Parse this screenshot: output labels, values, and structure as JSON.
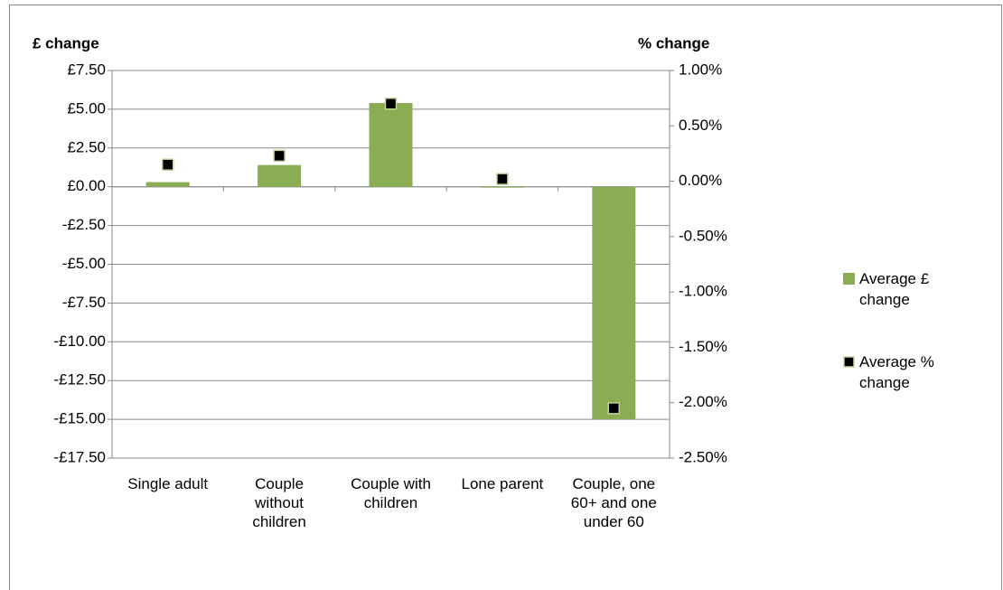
{
  "chart_data": {
    "type": "bar",
    "y_title": "£ change",
    "y2_title": "% change",
    "categories": [
      "Single adult",
      "Couple without children",
      "Couple with children",
      "Lone parent",
      "Couple, one 60+ and one under 60"
    ],
    "series": [
      {
        "name": "Average £ change",
        "type": "bar",
        "color": "#8aac52",
        "values": [
          0.3,
          1.4,
          5.4,
          -0.05,
          -15.0
        ]
      },
      {
        "name": "Average % change",
        "type": "scatter",
        "axis": "y2",
        "color": "#000000",
        "values": [
          0.15,
          0.23,
          0.7,
          0.02,
          -2.05
        ]
      }
    ],
    "ylim": [
      -17.5,
      7.5
    ],
    "yticks": [
      {
        "value": -17.5,
        "label": "-£17.50"
      },
      {
        "value": -15,
        "label": "-£15.00"
      },
      {
        "value": -12.5,
        "label": "-£12.50"
      },
      {
        "value": -10,
        "label": "-£10.00"
      },
      {
        "value": -7.5,
        "label": "-£7.50"
      },
      {
        "value": -5,
        "label": "-£5.00"
      },
      {
        "value": -2.5,
        "label": "-£2.50"
      },
      {
        "value": 0,
        "label": "£0.00"
      },
      {
        "value": 2.5,
        "label": "£2.50"
      },
      {
        "value": 5,
        "label": "£5.00"
      },
      {
        "value": 7.5,
        "label": "£7.50"
      }
    ],
    "y2lim": [
      -2.5,
      1.0
    ],
    "y2ticks": [
      {
        "value": -2.5,
        "label": "-2.50%"
      },
      {
        "value": -2,
        "label": "-2.00%"
      },
      {
        "value": -1.5,
        "label": "-1.50%"
      },
      {
        "value": -1,
        "label": "-1.00%"
      },
      {
        "value": -0.5,
        "label": "-0.50%"
      },
      {
        "value": 0,
        "label": "0.00%"
      },
      {
        "value": 0.5,
        "label": "0.50%"
      },
      {
        "value": 1,
        "label": "1.00%"
      }
    ],
    "grid": true,
    "legend": "right"
  }
}
